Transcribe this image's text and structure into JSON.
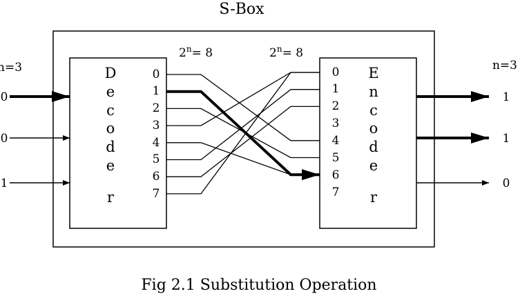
{
  "title": "S-Box",
  "caption": "Fig 2.1  Substitution Operation",
  "input_size_label": "n=3",
  "output_size_label": "n=3",
  "decoder": {
    "letters": [
      "D",
      "e",
      "c",
      "o",
      "d",
      "e",
      "r"
    ],
    "lines_label": {
      "base": "2",
      "sup": "n",
      "rest": "= 8"
    },
    "outputs": [
      "0",
      "1",
      "2",
      "3",
      "4",
      "5",
      "6",
      "7"
    ]
  },
  "encoder": {
    "letters": [
      "E",
      "n",
      "c",
      "o",
      "d",
      "e",
      "r"
    ],
    "lines_label": {
      "base": "2",
      "sup": "n",
      "rest": "= 8"
    },
    "inputs": [
      "0",
      "1",
      "2",
      "3",
      "4",
      "5",
      "6",
      "7"
    ]
  },
  "input_bits": [
    "0",
    "0",
    "1"
  ],
  "output_bits": [
    "1",
    "1",
    "0"
  ],
  "active_input_bits": [
    0
  ],
  "active_output_bits": [
    0,
    1
  ],
  "wiring": [
    {
      "from": 0,
      "to": 4
    },
    {
      "from": 1,
      "to": 6
    },
    {
      "from": 2,
      "to": 5
    },
    {
      "from": 3,
      "to": 0
    },
    {
      "from": 4,
      "to": 6
    },
    {
      "from": 5,
      "to": 1
    },
    {
      "from": 6,
      "to": 2
    },
    {
      "from": 7,
      "to": 0
    }
  ],
  "active_wire": 1
}
